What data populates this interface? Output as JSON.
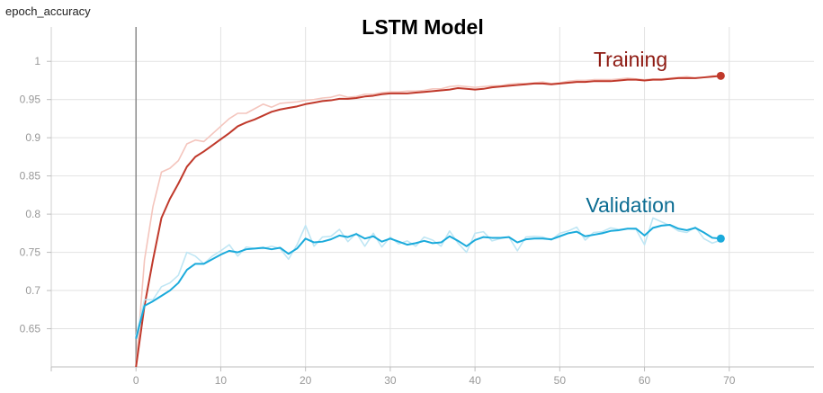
{
  "metric_name": "epoch_accuracy",
  "chart_data": {
    "type": "line",
    "title": "LSTM Model",
    "xlabel": "",
    "ylabel": "",
    "xlim": [
      -10,
      80
    ],
    "ylim": [
      0.6,
      1.045
    ],
    "x_ticks": [
      0,
      10,
      20,
      30,
      40,
      50,
      60,
      70
    ],
    "y_ticks": [
      0.65,
      0.7,
      0.75,
      0.8,
      0.85,
      0.9,
      0.95,
      1
    ],
    "y_tick_labels": [
      "0.65",
      "0.7",
      "0.75",
      "0.8",
      "0.85",
      "0.9",
      "0.95",
      "1"
    ],
    "grid": true,
    "smoothed": true,
    "series": [
      {
        "name": "Training",
        "color": "#c0392b",
        "raw_color": "#f4c5bd",
        "raw_values": [
          0.6,
          0.74,
          0.81,
          0.855,
          0.86,
          0.87,
          0.892,
          0.897,
          0.895,
          0.905,
          0.915,
          0.925,
          0.932,
          0.932,
          0.938,
          0.944,
          0.94,
          0.945,
          0.946,
          0.947,
          0.949,
          0.95,
          0.952,
          0.953,
          0.956,
          0.953,
          0.954,
          0.957,
          0.957,
          0.959,
          0.96,
          0.96,
          0.961,
          0.961,
          0.962,
          0.964,
          0.964,
          0.967,
          0.968,
          0.967,
          0.966,
          0.967,
          0.968,
          0.968,
          0.97,
          0.971,
          0.971,
          0.972,
          0.973,
          0.971,
          0.972,
          0.974,
          0.975,
          0.975,
          0.976,
          0.976,
          0.976,
          0.977,
          0.978,
          0.977,
          0.976,
          0.977,
          0.977,
          0.978,
          0.979,
          0.98,
          0.978,
          0.979,
          0.981,
          0.981
        ],
        "values": [
          0.6,
          0.68,
          0.74,
          0.795,
          0.82,
          0.84,
          0.862,
          0.875,
          0.882,
          0.89,
          0.898,
          0.906,
          0.915,
          0.92,
          0.924,
          0.929,
          0.934,
          0.937,
          0.939,
          0.941,
          0.944,
          0.946,
          0.948,
          0.949,
          0.951,
          0.951,
          0.952,
          0.954,
          0.955,
          0.957,
          0.958,
          0.958,
          0.958,
          0.959,
          0.96,
          0.961,
          0.962,
          0.963,
          0.965,
          0.964,
          0.963,
          0.964,
          0.966,
          0.967,
          0.968,
          0.969,
          0.97,
          0.971,
          0.971,
          0.97,
          0.971,
          0.972,
          0.973,
          0.973,
          0.974,
          0.974,
          0.974,
          0.975,
          0.976,
          0.976,
          0.975,
          0.976,
          0.976,
          0.977,
          0.978,
          0.978,
          0.978,
          0.979,
          0.98,
          0.981
        ]
      },
      {
        "name": "Validation",
        "color": "#1aaadb",
        "raw_color": "#bfe6f4",
        "raw_values": [
          0.64,
          0.688,
          0.688,
          0.705,
          0.71,
          0.72,
          0.75,
          0.745,
          0.735,
          0.745,
          0.752,
          0.76,
          0.745,
          0.757,
          0.755,
          0.755,
          0.758,
          0.755,
          0.741,
          0.76,
          0.785,
          0.758,
          0.77,
          0.771,
          0.78,
          0.764,
          0.775,
          0.758,
          0.775,
          0.757,
          0.77,
          0.761,
          0.765,
          0.758,
          0.77,
          0.766,
          0.758,
          0.778,
          0.762,
          0.75,
          0.775,
          0.777,
          0.765,
          0.768,
          0.77,
          0.752,
          0.77,
          0.771,
          0.77,
          0.766,
          0.775,
          0.778,
          0.783,
          0.766,
          0.776,
          0.777,
          0.782,
          0.78,
          0.781,
          0.78,
          0.76,
          0.795,
          0.79,
          0.785,
          0.778,
          0.776,
          0.783,
          0.768,
          0.762,
          0.766
        ],
        "values": [
          0.637,
          0.68,
          0.686,
          0.693,
          0.7,
          0.71,
          0.727,
          0.735,
          0.735,
          0.741,
          0.747,
          0.752,
          0.75,
          0.754,
          0.755,
          0.756,
          0.754,
          0.756,
          0.748,
          0.755,
          0.768,
          0.763,
          0.764,
          0.767,
          0.772,
          0.77,
          0.774,
          0.768,
          0.771,
          0.764,
          0.768,
          0.764,
          0.76,
          0.762,
          0.765,
          0.762,
          0.763,
          0.771,
          0.765,
          0.758,
          0.766,
          0.77,
          0.769,
          0.769,
          0.77,
          0.763,
          0.767,
          0.768,
          0.768,
          0.767,
          0.771,
          0.775,
          0.777,
          0.771,
          0.773,
          0.775,
          0.778,
          0.779,
          0.781,
          0.781,
          0.772,
          0.782,
          0.785,
          0.786,
          0.781,
          0.779,
          0.782,
          0.776,
          0.769,
          0.768
        ]
      }
    ]
  }
}
